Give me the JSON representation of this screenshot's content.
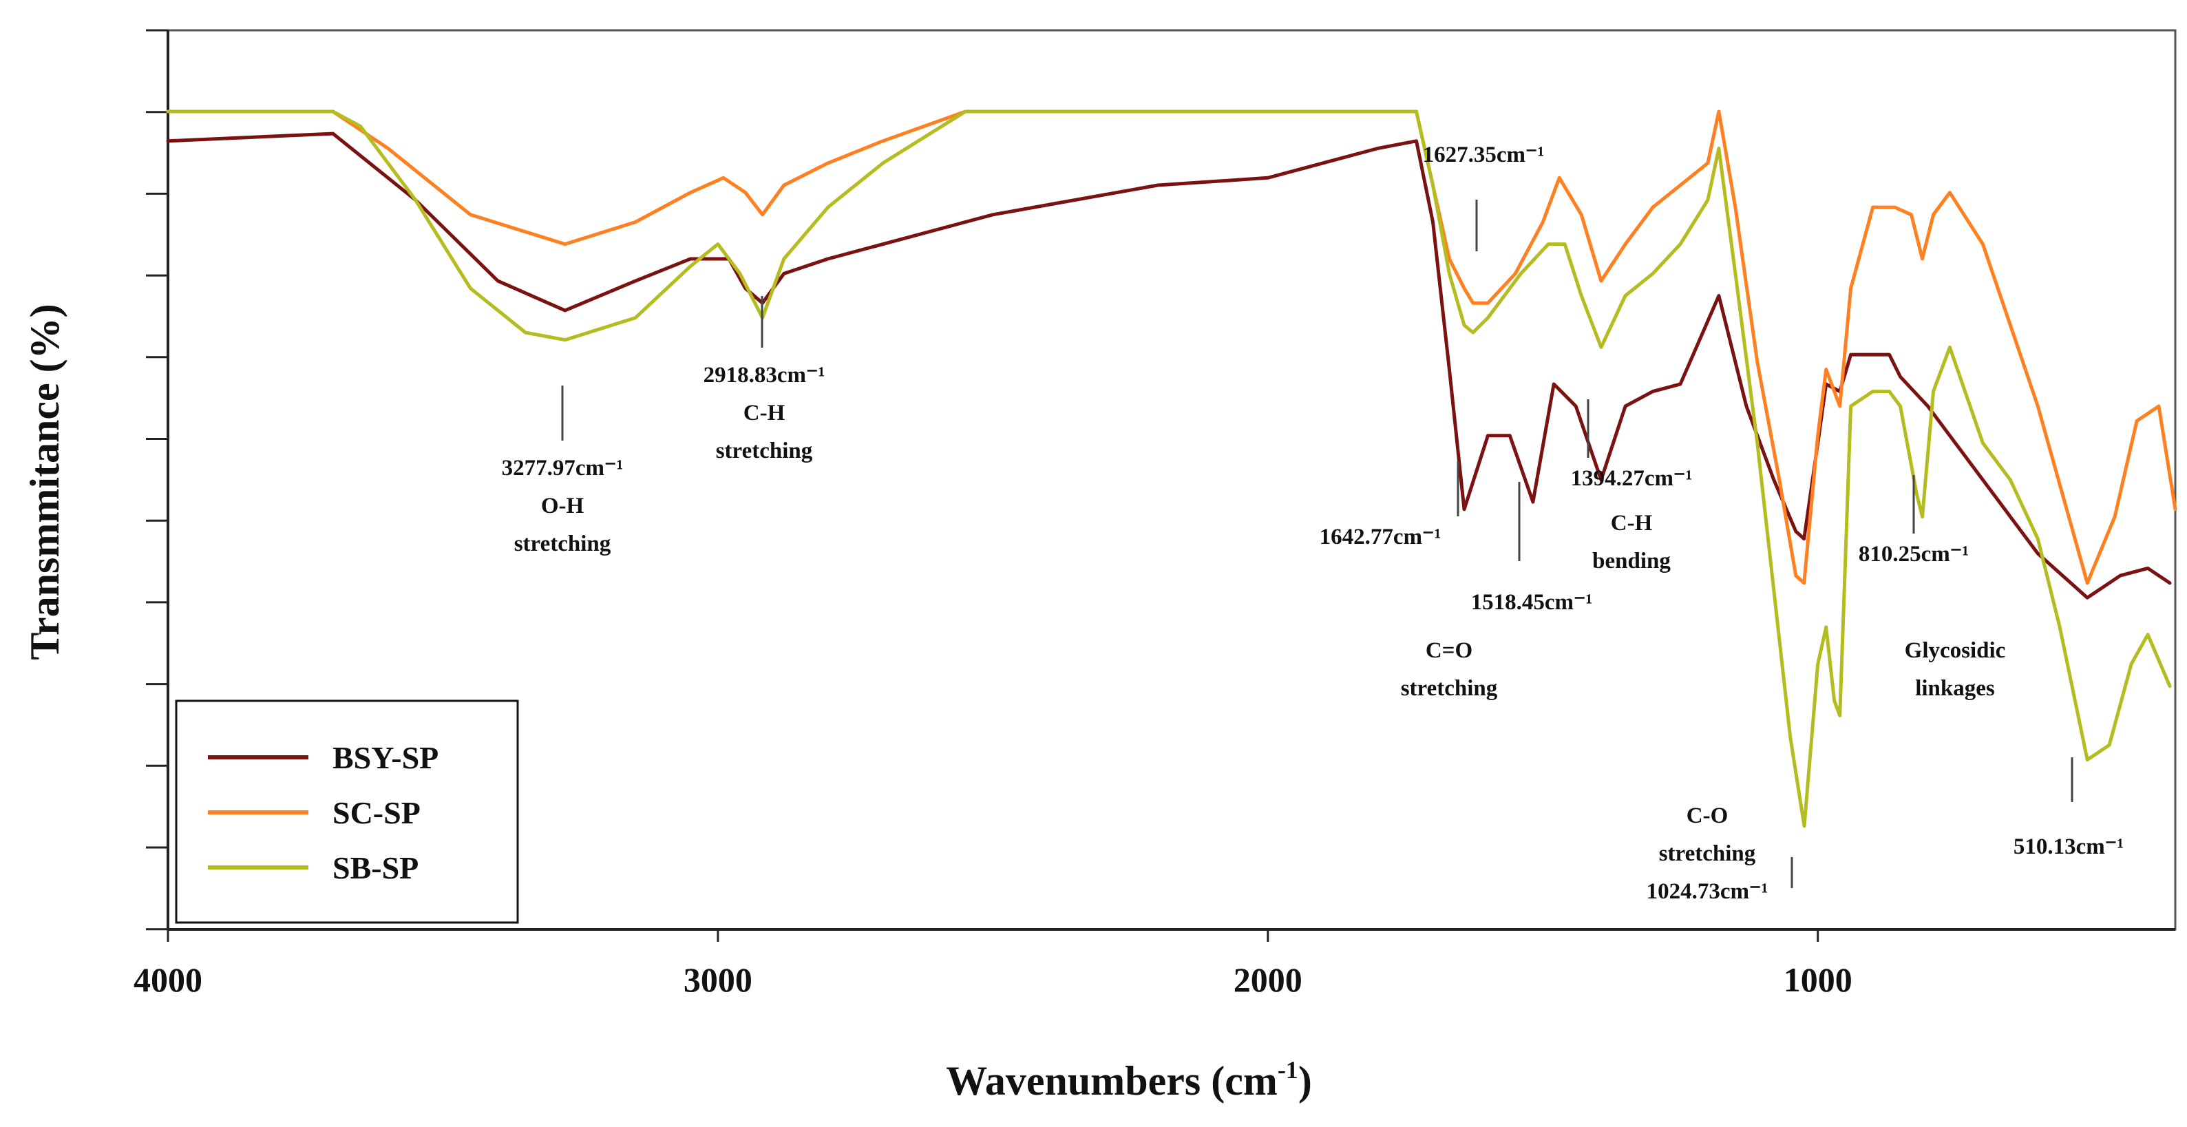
{
  "chart_data": {
    "type": "line",
    "title": "",
    "xlabel": "Wavenumbers (cm",
    "xlabel_sup": "-1",
    "xlabel_end": ")",
    "ylabel": "Transmmitance (%)",
    "xlim": [
      4000,
      350
    ],
    "x_reversed": true,
    "x_ticks": [
      4000,
      3000,
      2000,
      1000
    ],
    "y_ticks_labeled": false,
    "legend_position": "bottom-left",
    "grid": false,
    "series": [
      {
        "name": "BSY-SP",
        "color": "#7a1212",
        "points": [
          [
            4000,
            96
          ],
          [
            3700,
            97
          ],
          [
            3550,
            88
          ],
          [
            3400,
            77
          ],
          [
            3278,
            73
          ],
          [
            3150,
            77
          ],
          [
            3050,
            80
          ],
          [
            2980,
            80
          ],
          [
            2950,
            76
          ],
          [
            2919,
            74
          ],
          [
            2880,
            78
          ],
          [
            2800,
            80
          ],
          [
            2500,
            86
          ],
          [
            2200,
            90
          ],
          [
            2000,
            91
          ],
          [
            1800,
            95
          ],
          [
            1730,
            96
          ],
          [
            1700,
            85
          ],
          [
            1670,
            65
          ],
          [
            1643,
            46
          ],
          [
            1600,
            56
          ],
          [
            1560,
            56
          ],
          [
            1518,
            47
          ],
          [
            1480,
            63
          ],
          [
            1440,
            60
          ],
          [
            1394,
            50
          ],
          [
            1350,
            60
          ],
          [
            1300,
            62
          ],
          [
            1250,
            63
          ],
          [
            1180,
            75
          ],
          [
            1130,
            60
          ],
          [
            1080,
            50
          ],
          [
            1040,
            43
          ],
          [
            1025,
            42
          ],
          [
            1000,
            55
          ],
          [
            985,
            63
          ],
          [
            960,
            62
          ],
          [
            940,
            67
          ],
          [
            900,
            67
          ],
          [
            870,
            67
          ],
          [
            850,
            64
          ],
          [
            800,
            60
          ],
          [
            700,
            50
          ],
          [
            600,
            40
          ],
          [
            510,
            34
          ],
          [
            450,
            37
          ],
          [
            400,
            38
          ],
          [
            360,
            36
          ]
        ]
      },
      {
        "name": "SC-SP",
        "color": "#ff8020",
        "points": [
          [
            4000,
            100
          ],
          [
            3700,
            100
          ],
          [
            3600,
            95
          ],
          [
            3450,
            86
          ],
          [
            3278,
            82
          ],
          [
            3150,
            85
          ],
          [
            3050,
            89
          ],
          [
            2990,
            91
          ],
          [
            2950,
            89
          ],
          [
            2919,
            86
          ],
          [
            2880,
            90
          ],
          [
            2800,
            93
          ],
          [
            2700,
            96
          ],
          [
            2550,
            100
          ],
          [
            2000,
            100
          ],
          [
            1800,
            100
          ],
          [
            1730,
            100
          ],
          [
            1700,
            90
          ],
          [
            1670,
            80
          ],
          [
            1643,
            76
          ],
          [
            1627,
            74
          ],
          [
            1600,
            74
          ],
          [
            1550,
            78
          ],
          [
            1500,
            85
          ],
          [
            1470,
            91
          ],
          [
            1430,
            86
          ],
          [
            1394,
            77
          ],
          [
            1350,
            82
          ],
          [
            1300,
            87
          ],
          [
            1200,
            93
          ],
          [
            1180,
            100
          ],
          [
            1150,
            87
          ],
          [
            1110,
            66
          ],
          [
            1070,
            50
          ],
          [
            1040,
            37
          ],
          [
            1025,
            36
          ],
          [
            1000,
            56
          ],
          [
            985,
            65
          ],
          [
            960,
            60
          ],
          [
            940,
            76
          ],
          [
            900,
            87
          ],
          [
            860,
            87
          ],
          [
            830,
            86
          ],
          [
            810,
            80
          ],
          [
            790,
            86
          ],
          [
            760,
            89
          ],
          [
            700,
            82
          ],
          [
            600,
            60
          ],
          [
            510,
            36
          ],
          [
            460,
            45
          ],
          [
            420,
            58
          ],
          [
            380,
            60
          ],
          [
            350,
            46
          ]
        ]
      },
      {
        "name": "SB-SP",
        "color": "#b4bc20",
        "points": [
          [
            4000,
            100
          ],
          [
            3700,
            100
          ],
          [
            3650,
            98
          ],
          [
            3550,
            88
          ],
          [
            3450,
            76
          ],
          [
            3350,
            70
          ],
          [
            3278,
            69
          ],
          [
            3150,
            72
          ],
          [
            3050,
            79
          ],
          [
            3000,
            82
          ],
          [
            2960,
            78
          ],
          [
            2919,
            72
          ],
          [
            2880,
            80
          ],
          [
            2800,
            87
          ],
          [
            2700,
            93
          ],
          [
            2550,
            100
          ],
          [
            2000,
            100
          ],
          [
            1800,
            100
          ],
          [
            1730,
            100
          ],
          [
            1700,
            90
          ],
          [
            1670,
            78
          ],
          [
            1643,
            71
          ],
          [
            1627,
            70
          ],
          [
            1600,
            72
          ],
          [
            1540,
            78
          ],
          [
            1490,
            82
          ],
          [
            1460,
            82
          ],
          [
            1430,
            75
          ],
          [
            1394,
            68
          ],
          [
            1350,
            75
          ],
          [
            1300,
            78
          ],
          [
            1250,
            82
          ],
          [
            1200,
            88
          ],
          [
            1180,
            95
          ],
          [
            1150,
            78
          ],
          [
            1110,
            55
          ],
          [
            1080,
            35
          ],
          [
            1050,
            15
          ],
          [
            1024.73,
            3
          ],
          [
            1000,
            25
          ],
          [
            985,
            30
          ],
          [
            970,
            20
          ],
          [
            960,
            18
          ],
          [
            940,
            60
          ],
          [
            900,
            62
          ],
          [
            870,
            62
          ],
          [
            850,
            60
          ],
          [
            820,
            48
          ],
          [
            810,
            45
          ],
          [
            790,
            62
          ],
          [
            760,
            68
          ],
          [
            700,
            55
          ],
          [
            650,
            50
          ],
          [
            600,
            42
          ],
          [
            560,
            30
          ],
          [
            510,
            12
          ],
          [
            470,
            14
          ],
          [
            430,
            25
          ],
          [
            400,
            29
          ],
          [
            360,
            22
          ]
        ]
      }
    ],
    "annotations": [
      {
        "lines": [
          "3277.97cm⁻¹",
          "O-H",
          "stretching"
        ]
      },
      {
        "lines": [
          "2918.83cm⁻¹",
          "C-H",
          "stretching"
        ]
      },
      {
        "lines": [
          "1627.35cm⁻¹"
        ]
      },
      {
        "lines": [
          "1642.77cm⁻¹"
        ]
      },
      {
        "lines": [
          "1518.45cm⁻¹"
        ]
      },
      {
        "lines": [
          "C=O",
          "stretching"
        ]
      },
      {
        "lines": [
          "1394.27cm⁻¹",
          "C-H",
          "bending"
        ]
      },
      {
        "lines": [
          "C-O",
          "stretching",
          "1024.73cm⁻¹"
        ]
      },
      {
        "lines": [
          "810.25cm⁻¹"
        ]
      },
      {
        "lines": [
          "Glycosidic",
          "linkages"
        ]
      },
      {
        "lines": [
          "510.13cm⁻¹"
        ]
      }
    ]
  }
}
